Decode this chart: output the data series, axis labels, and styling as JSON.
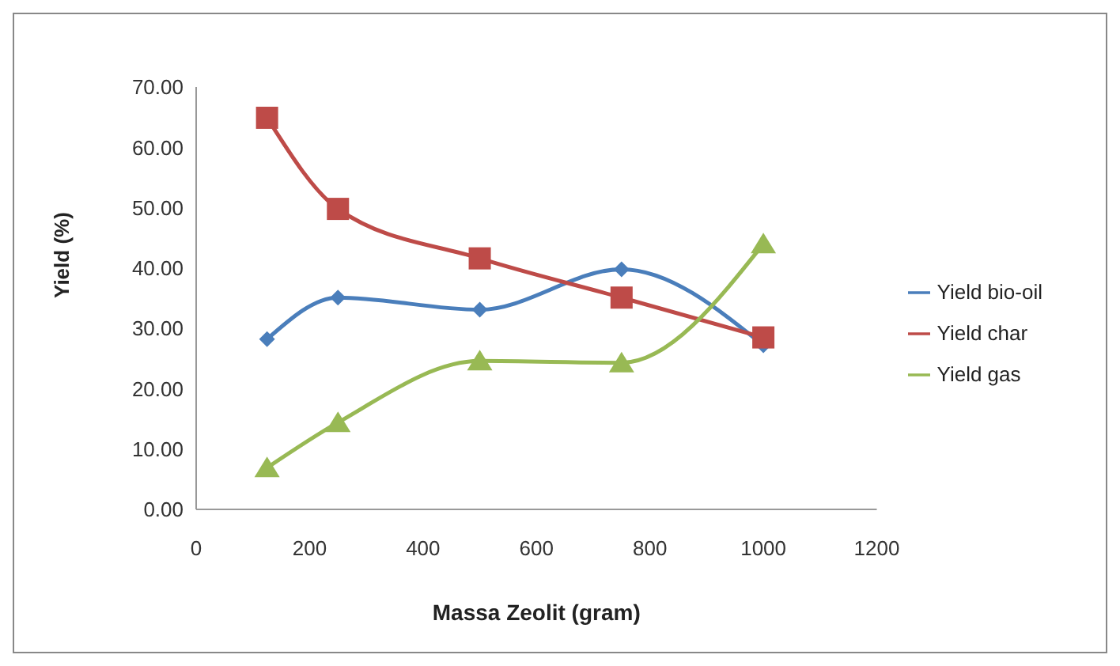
{
  "chart_data": {
    "type": "line",
    "xlabel": "Massa Zeolit (gram)",
    "ylabel": "Yield (%)",
    "x": [
      125,
      250,
      500,
      750,
      1000
    ],
    "series": [
      {
        "name": "Yield bio-oil",
        "color": "#4a7ebb",
        "marker": "diamond",
        "values": [
          28.2,
          35.1,
          33.1,
          39.8,
          27.2
        ]
      },
      {
        "name": "Yield char",
        "color": "#be4b48",
        "marker": "square",
        "values": [
          64.9,
          49.8,
          41.6,
          35.1,
          28.5
        ]
      },
      {
        "name": "Yield gas",
        "color": "#98b954",
        "marker": "triangle",
        "values": [
          6.9,
          14.4,
          24.6,
          24.3,
          44.0
        ]
      }
    ],
    "xlim": [
      0,
      1200
    ],
    "xticks": [
      0,
      200,
      400,
      600,
      800,
      1000,
      1200
    ],
    "ylim": [
      0,
      70
    ],
    "yticks": [
      {
        "value": 0,
        "label": "0.00"
      },
      {
        "value": 10,
        "label": "10.00"
      },
      {
        "value": 20,
        "label": "20.00"
      },
      {
        "value": 30,
        "label": "30.00"
      },
      {
        "value": 40,
        "label": "40.00"
      },
      {
        "value": 50,
        "label": "50.00"
      },
      {
        "value": 60,
        "label": "60.00"
      },
      {
        "value": 70,
        "label": "70.00"
      }
    ],
    "grid": false,
    "legend": "right"
  }
}
